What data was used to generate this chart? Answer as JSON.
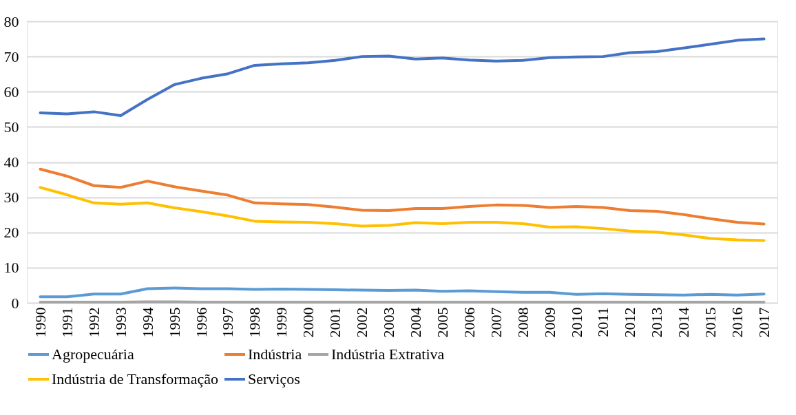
{
  "chart_data": {
    "type": "line",
    "categories": [
      "1990",
      "1991",
      "1992",
      "1993",
      "1994",
      "1995",
      "1996",
      "1997",
      "1998",
      "1999",
      "2000",
      "2001",
      "2002",
      "2003",
      "2004",
      "2005",
      "2006",
      "2007",
      "2008",
      "2009",
      "2010",
      "2011",
      "2012",
      "2013",
      "2014",
      "2015",
      "2016",
      "2017"
    ],
    "series": [
      {
        "name": "Agropecuária",
        "color": "#5b9bd5",
        "values": [
          1.7,
          1.7,
          2.5,
          2.5,
          4.0,
          4.2,
          4.0,
          4.0,
          3.8,
          3.9,
          3.8,
          3.7,
          3.6,
          3.5,
          3.6,
          3.3,
          3.4,
          3.2,
          3.0,
          3.0,
          2.4,
          2.6,
          2.4,
          2.3,
          2.2,
          2.4,
          2.2,
          2.5
        ]
      },
      {
        "name": "Indústria",
        "color": "#ed7d31",
        "values": [
          38,
          36,
          33.3,
          32.8,
          34.6,
          33,
          31.8,
          30.6,
          28.4,
          28.1,
          27.9,
          27.2,
          26.3,
          26.2,
          26.8,
          26.8,
          27.4,
          27.8,
          27.7,
          27.1,
          27.4,
          27.1,
          26.2,
          26.0,
          25.1,
          23.9,
          22.9,
          22.4
        ]
      },
      {
        "name": "Indústria Extrativa",
        "color": "#a5a5a5",
        "values": [
          0.2,
          0.2,
          0.2,
          0.2,
          0.3,
          0.3,
          0.2,
          0.2,
          0.2,
          0.2,
          0.2,
          0.2,
          0.2,
          0.2,
          0.2,
          0.2,
          0.2,
          0.2,
          0.2,
          0.2,
          0.2,
          0.2,
          0.2,
          0.2,
          0.2,
          0.2,
          0.2,
          0.2
        ]
      },
      {
        "name": "Indústria de Transformação",
        "color": "#ffc000",
        "values": [
          32.8,
          30.7,
          28.4,
          28,
          28.4,
          27,
          25.9,
          24.7,
          23.2,
          23,
          22.9,
          22.5,
          21.8,
          22,
          22.8,
          22.5,
          22.9,
          22.9,
          22.5,
          21.5,
          21.6,
          21.1,
          20.4,
          20.1,
          19.3,
          18.3,
          17.9,
          17.7
        ]
      },
      {
        "name": "Serviços",
        "color": "#4472c4",
        "values": [
          54,
          53.7,
          54.3,
          53.2,
          57.8,
          62,
          63.8,
          65.1,
          67.5,
          67.9,
          68.2,
          68.9,
          70,
          70.1,
          69.3,
          69.6,
          69,
          68.7,
          68.9,
          69.7,
          69.9,
          70,
          71.1,
          71.4,
          72.4,
          73.5,
          74.6,
          75
        ]
      }
    ],
    "ylim": [
      0,
      80
    ],
    "yticks": [
      0,
      10,
      20,
      30,
      40,
      50,
      60,
      70,
      80
    ],
    "grid": "y",
    "legend": "bottom",
    "marker": "none",
    "line_style": "solid"
  }
}
